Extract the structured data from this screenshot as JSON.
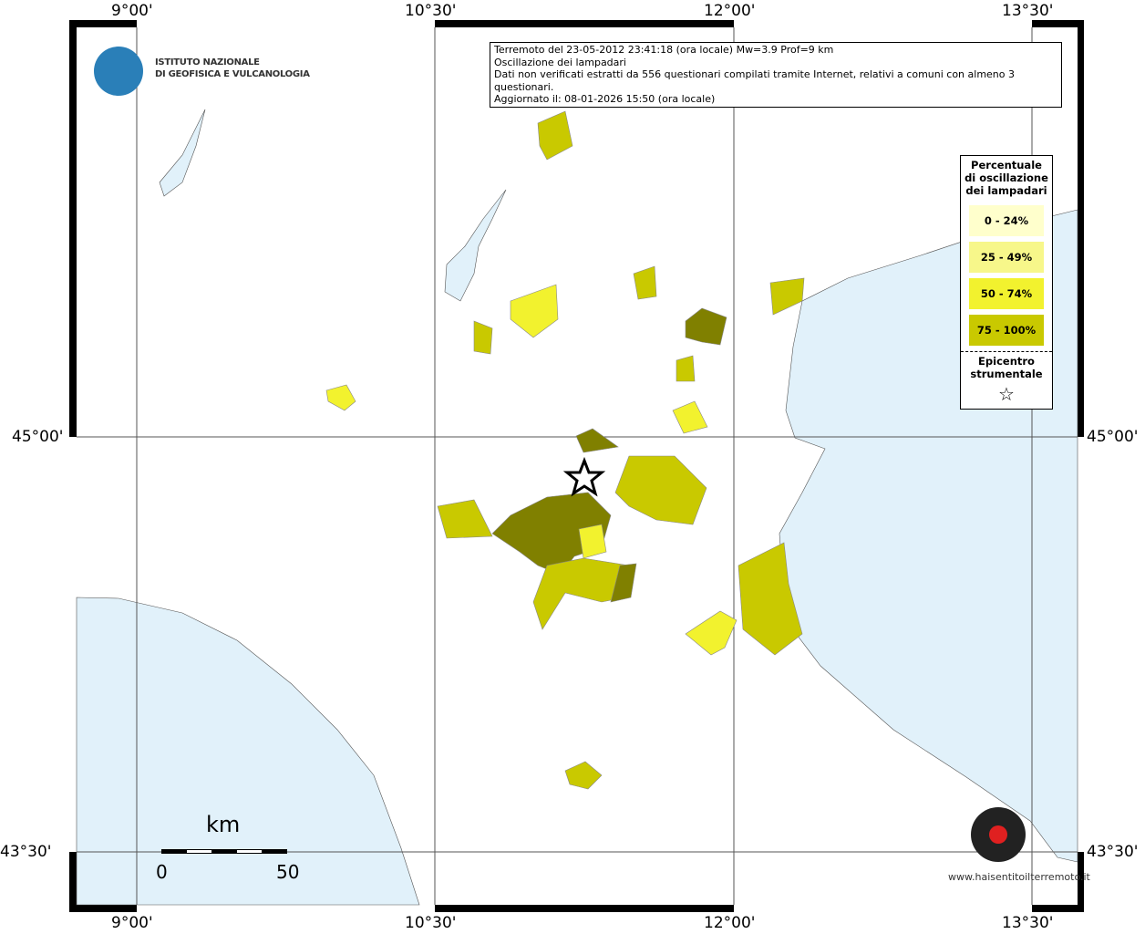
{
  "header": {
    "institute": [
      "ISTITUTO NAZIONALE",
      "DI GEOFISICA E VULCANOLOGIA"
    ]
  },
  "info": [
    "Terremoto del 23-05-2012 23:41:18 (ora locale) Mw=3.9 Prof=9 km",
    "Oscillazione dei lampadari",
    "Dati non verificati estratti da 556 questionari compilati tramite Internet, relativi a comuni con almeno 3 questionari.",
    "Aggiornato il: 08-01-2026 15:50 (ora locale)"
  ],
  "axes": {
    "lon_labels": [
      "9°00'",
      "10°30'",
      "12°00'",
      "13°30'"
    ],
    "lat_labels": [
      "45°00'",
      "43°30'"
    ]
  },
  "legend": {
    "title": "Percentuale di oscillazione dei lampadari",
    "items": [
      {
        "label": "0 - 24%",
        "color": "#ffffcc"
      },
      {
        "label": "25 - 49%",
        "color": "#f7f78a"
      },
      {
        "label": "50 - 74%",
        "color": "#f2f22e"
      },
      {
        "label": "75 - 100%",
        "color": "#c9c900"
      }
    ],
    "epicenter": "Epicentro strumentale"
  },
  "scale": {
    "unit": "km",
    "start": "0",
    "end": "50"
  },
  "footer": {
    "site": "www.haisentitoilterremoto.it"
  }
}
